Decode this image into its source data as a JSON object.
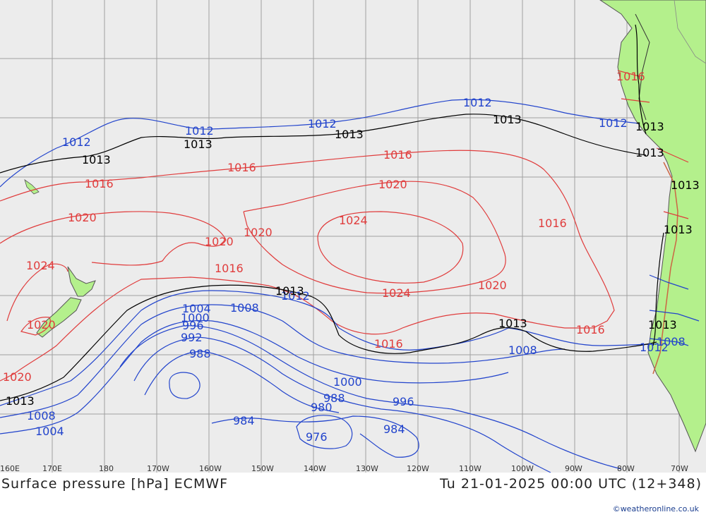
{
  "title_left": "Surface pressure [hPa] ECMWF",
  "title_right": "Tu 21-01-2025 00:00 UTC (12+348)",
  "credit": "©weatheronline.co.uk",
  "colors": {
    "ocean": "#ececec",
    "land": "#b4f08c",
    "grid": "#a0a0a0",
    "low_isobar": "#2244cc",
    "high_isobar": "#e03c3c",
    "standard_isobar": "#000000"
  },
  "longitude_ticks": [
    "160E",
    "170E",
    "180",
    "170W",
    "160W",
    "150W",
    "140W",
    "130W",
    "120W",
    "110W",
    "100W",
    "90W",
    "80W",
    "70W"
  ],
  "isobar_labels": {
    "red": [
      "1016",
      "1016",
      "1016",
      "1016",
      "1016",
      "1016",
      "1016",
      "1016",
      "1020",
      "1020",
      "1020",
      "1020",
      "1020",
      "1020",
      "1020",
      "1024",
      "1024",
      "1024"
    ],
    "blue": [
      "1012",
      "1012",
      "1012",
      "1012",
      "1012",
      "1012",
      "1012",
      "1008",
      "1008",
      "1008",
      "1008",
      "1004",
      "1004",
      "1000",
      "1000",
      "996",
      "996",
      "992",
      "988",
      "988",
      "984",
      "984",
      "980",
      "976"
    ],
    "black": [
      "1013",
      "1013",
      "1013",
      "1013",
      "1013",
      "1013",
      "1013",
      "1013",
      "1013",
      "1013",
      "1013",
      "1013"
    ]
  }
}
